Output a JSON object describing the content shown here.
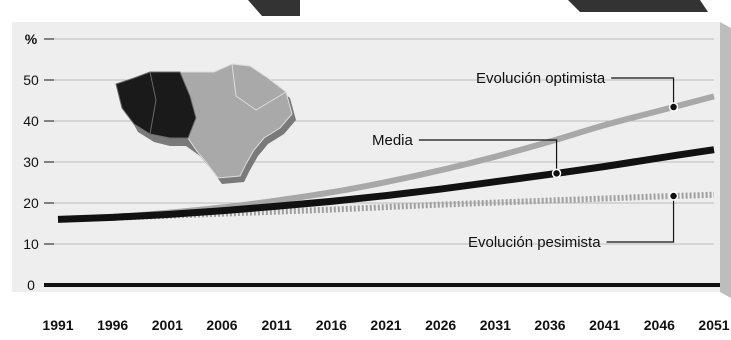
{
  "chart_data": {
    "type": "line",
    "title": "",
    "xlabel": "",
    "ylabel": "%",
    "x": [
      1991,
      1996,
      2001,
      2006,
      2011,
      2016,
      2021,
      2026,
      2031,
      2036,
      2041,
      2046,
      2051
    ],
    "xticks": [
      "1991",
      "1996",
      "2001",
      "2006",
      "2011",
      "2016",
      "2021",
      "2026",
      "2031",
      "2036",
      "2041",
      "2046",
      "2051"
    ],
    "yticks": [
      "0",
      "10",
      "20",
      "30",
      "40",
      "50",
      "%"
    ],
    "ylim": [
      0,
      60
    ],
    "grid": true,
    "series": [
      {
        "name": "Evolución optimista",
        "color": "#a8a8a8",
        "values": [
          16,
          16.6,
          17.6,
          18.9,
          20.6,
          22.6,
          25.1,
          28,
          31.3,
          35,
          39,
          42.5,
          46
        ]
      },
      {
        "name": "Media",
        "color": "#111111",
        "values": [
          16,
          16.5,
          17.2,
          18.1,
          19.2,
          20.4,
          21.8,
          23.4,
          25.2,
          27,
          28.9,
          31,
          33
        ]
      },
      {
        "name": "Evolución pesimista",
        "color": "#a0a0a0",
        "values": [
          16,
          16.4,
          16.9,
          17.4,
          17.9,
          18.4,
          19,
          19.6,
          20.1,
          20.6,
          21.1,
          21.6,
          22
        ]
      }
    ],
    "annotations": [
      "Evolución optimista",
      "Media",
      "Evolución pesimista"
    ]
  },
  "colors": {
    "panel": "#eeeeee",
    "grid": "#bcbcbc",
    "axis": "#111111",
    "map_dark": "#1a1a1a",
    "map_light": "#a9a9a9"
  },
  "decoration": {
    "map": "region-map-icon"
  }
}
